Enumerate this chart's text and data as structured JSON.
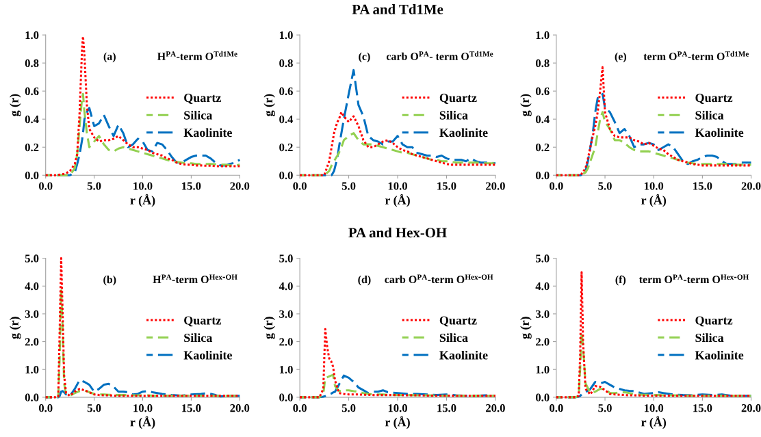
{
  "chart_data": [
    {
      "type": "line",
      "xlabel": "r (Å)",
      "ylabel": "g (r)",
      "annotations": [
        "(a)",
        "H$^{PA}$-term O$^{Td1Me}$"
      ],
      "x": [
        0,
        1,
        2,
        2.5,
        3,
        3.25,
        3.5,
        3.75,
        3.85,
        4,
        4.25,
        4.5,
        5,
        5.5,
        6,
        6.5,
        7,
        7.5,
        8,
        8.5,
        9,
        9.5,
        10,
        10.5,
        11,
        11.5,
        12,
        12.5,
        13,
        13.5,
        14,
        14.5,
        15,
        15.5,
        16,
        16.5,
        17,
        17.5,
        18,
        18.5,
        19,
        19.5,
        20
      ],
      "series": [
        {
          "name": "Quartz",
          "color": "#ff0000",
          "line_style": "dotted",
          "values": [
            0,
            0,
            0.01,
            0.03,
            0.08,
            0.15,
            0.45,
            0.9,
            0.99,
            0.85,
            0.5,
            0.33,
            0.27,
            0.24,
            0.25,
            0.25,
            0.26,
            0.28,
            0.25,
            0.22,
            0.2,
            0.2,
            0.19,
            0.18,
            0.16,
            0.15,
            0.14,
            0.12,
            0.11,
            0.09,
            0.08,
            0.075,
            0.075,
            0.07,
            0.07,
            0.068,
            0.068,
            0.065,
            0.065,
            0.065,
            0.065,
            0.065,
            0.065
          ]
        },
        {
          "name": "Silica",
          "color": "#92d050",
          "line_style": "dashed",
          "values": [
            0,
            0,
            0,
            0,
            0.05,
            0.15,
            0.35,
            0.55,
            0.58,
            0.45,
            0.3,
            0.2,
            0.24,
            0.28,
            0.22,
            0.18,
            0.17,
            0.19,
            0.2,
            0.19,
            0.18,
            0.17,
            0.16,
            0.15,
            0.14,
            0.13,
            0.12,
            0.11,
            0.1,
            0.095,
            0.09,
            0.085,
            0.085,
            0.08,
            0.08,
            0.08,
            0.08,
            0.078,
            0.075,
            0.075,
            0.07,
            0.07,
            0.075
          ]
        },
        {
          "name": "Kaolinite",
          "color": "#0070c0",
          "line_style": "dashed",
          "values": [
            0,
            0,
            0,
            0,
            0.02,
            0.08,
            0.15,
            0.25,
            0.3,
            0.4,
            0.45,
            0.48,
            0.35,
            0.37,
            0.43,
            0.35,
            0.28,
            0.36,
            0.3,
            0.2,
            0.22,
            0.26,
            0.24,
            0.18,
            0.17,
            0.23,
            0.22,
            0.18,
            0.13,
            0.09,
            0.09,
            0.11,
            0.13,
            0.14,
            0.14,
            0.14,
            0.12,
            0.09,
            0.07,
            0.07,
            0.08,
            0.09,
            0.11
          ]
        }
      ],
      "xlim": [
        0,
        20
      ],
      "xticks": [
        {
          "value": 0,
          "label": "0.0"
        },
        {
          "value": 5,
          "label": "5.0"
        },
        {
          "value": 10,
          "label": "10.0"
        },
        {
          "value": 15,
          "label": "15.0"
        },
        {
          "value": 20,
          "label": "20.0"
        }
      ],
      "ylim": [
        0,
        1
      ],
      "yticks": [
        {
          "value": 0,
          "label": "0.0"
        },
        {
          "value": 0.2,
          "label": "0.2"
        },
        {
          "value": 0.4,
          "label": "0.4"
        },
        {
          "value": 0.6,
          "label": "0.6"
        },
        {
          "value": 0.8,
          "label": "0.8"
        },
        {
          "value": 1,
          "label": "1.0"
        }
      ],
      "legend": "right",
      "grid": false
    },
    {
      "type": "line",
      "title": "PA and Td1Me",
      "xlabel": "r (Å)",
      "ylabel": "g (r)",
      "annotations": [
        "(c)",
        "carb O$^{PA}$- term O$^{Td1Me}$"
      ],
      "x": [
        0,
        1,
        2,
        2.5,
        3,
        3.25,
        3.5,
        3.75,
        3.85,
        4,
        4.25,
        4.5,
        5,
        5.5,
        6,
        6.5,
        7,
        7.5,
        8,
        8.5,
        9,
        9.5,
        10,
        10.5,
        11,
        11.5,
        12,
        12.5,
        13,
        13.5,
        14,
        14.5,
        15,
        15.5,
        16,
        16.5,
        17,
        17.5,
        18,
        18.5,
        19,
        19.5,
        20
      ],
      "series": [
        {
          "name": "Quartz",
          "color": "#ff0000",
          "line_style": "dotted",
          "values": [
            0,
            0,
            0,
            0,
            0.1,
            0.2,
            0.3,
            0.36,
            0.38,
            0.4,
            0.45,
            0.42,
            0.38,
            0.42,
            0.35,
            0.25,
            0.2,
            0.2,
            0.22,
            0.24,
            0.25,
            0.23,
            0.2,
            0.18,
            0.17,
            0.15,
            0.14,
            0.13,
            0.12,
            0.11,
            0.1,
            0.09,
            0.08,
            0.075,
            0.075,
            0.075,
            0.075,
            0.075,
            0.075,
            0.075,
            0.075,
            0.075,
            0.075
          ]
        },
        {
          "name": "Silica",
          "color": "#92d050",
          "line_style": "dashed",
          "values": [
            0,
            0,
            0,
            0,
            0.03,
            0.07,
            0.1,
            0.13,
            0.14,
            0.16,
            0.2,
            0.25,
            0.28,
            0.3,
            0.25,
            0.22,
            0.22,
            0.22,
            0.21,
            0.2,
            0.19,
            0.18,
            0.17,
            0.16,
            0.16,
            0.15,
            0.14,
            0.13,
            0.12,
            0.11,
            0.11,
            0.1,
            0.1,
            0.095,
            0.09,
            0.09,
            0.09,
            0.09,
            0.09,
            0.09,
            0.085,
            0.085,
            0.085
          ]
        },
        {
          "name": "Kaolinite",
          "color": "#0070c0",
          "line_style": "dashed",
          "values": [
            0,
            0,
            0,
            0,
            0,
            0,
            0.03,
            0.1,
            0.13,
            0.2,
            0.3,
            0.4,
            0.58,
            0.75,
            0.5,
            0.42,
            0.28,
            0.25,
            0.24,
            0.22,
            0.24,
            0.24,
            0.28,
            0.22,
            0.2,
            0.2,
            0.16,
            0.15,
            0.14,
            0.14,
            0.13,
            0.14,
            0.12,
            0.11,
            0.11,
            0.11,
            0.1,
            0.12,
            0.1,
            0.09,
            0.09,
            0.09,
            0.085
          ]
        }
      ],
      "xlim": [
        0,
        20
      ],
      "xticks": [
        {
          "value": 0,
          "label": "0.0"
        },
        {
          "value": 5,
          "label": "5.0"
        },
        {
          "value": 10,
          "label": "10.0"
        },
        {
          "value": 15,
          "label": "15.0"
        },
        {
          "value": 20,
          "label": "20.0"
        }
      ],
      "ylim": [
        0,
        1
      ],
      "yticks": [
        {
          "value": 0,
          "label": "0.0"
        },
        {
          "value": 0.2,
          "label": "0.2"
        },
        {
          "value": 0.4,
          "label": "0.4"
        },
        {
          "value": 0.6,
          "label": "0.6"
        },
        {
          "value": 0.8,
          "label": "0.8"
        },
        {
          "value": 1,
          "label": "1.0"
        }
      ],
      "legend": "right",
      "grid": false
    },
    {
      "type": "line",
      "xlabel": "r (Å)",
      "ylabel": "g (r)",
      "annotations": [
        "(e)",
        "term O$^{PA}$-term O$^{Td1Me}$"
      ],
      "x": [
        0,
        1,
        2,
        2.5,
        3,
        3.25,
        3.5,
        3.75,
        4,
        4.25,
        4.5,
        4.75,
        5,
        5.5,
        6,
        6.5,
        7,
        7.5,
        8,
        8.5,
        9,
        9.5,
        10,
        10.5,
        11,
        11.5,
        12,
        12.5,
        13,
        13.5,
        14,
        14.5,
        15,
        15.5,
        16,
        16.5,
        17,
        17.5,
        18,
        18.5,
        19,
        19.5,
        20
      ],
      "series": [
        {
          "name": "Quartz",
          "color": "#ff0000",
          "line_style": "dotted",
          "values": [
            0,
            0,
            0,
            0,
            0.05,
            0.12,
            0.2,
            0.28,
            0.35,
            0.45,
            0.6,
            0.77,
            0.45,
            0.33,
            0.28,
            0.27,
            0.27,
            0.27,
            0.25,
            0.24,
            0.22,
            0.23,
            0.21,
            0.19,
            0.18,
            0.15,
            0.13,
            0.11,
            0.1,
            0.09,
            0.08,
            0.075,
            0.07,
            0.07,
            0.07,
            0.07,
            0.07,
            0.07,
            0.07,
            0.07,
            0.07,
            0.07,
            0.07
          ]
        },
        {
          "name": "Silica",
          "color": "#92d050",
          "line_style": "dashed",
          "values": [
            0,
            0,
            0,
            0,
            0.02,
            0.05,
            0.1,
            0.15,
            0.2,
            0.3,
            0.4,
            0.45,
            0.38,
            0.33,
            0.25,
            0.25,
            0.23,
            0.2,
            0.18,
            0.17,
            0.17,
            0.17,
            0.16,
            0.15,
            0.14,
            0.13,
            0.12,
            0.11,
            0.1,
            0.09,
            0.085,
            0.08,
            0.08,
            0.08,
            0.08,
            0.08,
            0.08,
            0.08,
            0.08,
            0.075,
            0.075,
            0.075,
            0.075
          ]
        },
        {
          "name": "Kaolinite",
          "color": "#0070c0",
          "line_style": "dashed",
          "values": [
            0,
            0,
            0,
            0,
            0.03,
            0.1,
            0.2,
            0.3,
            0.45,
            0.55,
            0.55,
            0.58,
            0.48,
            0.45,
            0.38,
            0.3,
            0.33,
            0.28,
            0.2,
            0.22,
            0.22,
            0.23,
            0.22,
            0.18,
            0.2,
            0.22,
            0.2,
            0.15,
            0.1,
            0.08,
            0.1,
            0.11,
            0.13,
            0.14,
            0.14,
            0.13,
            0.1,
            0.08,
            0.08,
            0.08,
            0.09,
            0.09,
            0.09
          ]
        }
      ],
      "xlim": [
        0,
        20
      ],
      "xticks": [
        {
          "value": 0,
          "label": "0.0"
        },
        {
          "value": 5,
          "label": "5.0"
        },
        {
          "value": 10,
          "label": "10.0"
        },
        {
          "value": 15,
          "label": "15.0"
        },
        {
          "value": 20,
          "label": "20.0"
        }
      ],
      "ylim": [
        0,
        1
      ],
      "yticks": [
        {
          "value": 0,
          "label": "0.0"
        },
        {
          "value": 0.2,
          "label": "0.2"
        },
        {
          "value": 0.4,
          "label": "0.4"
        },
        {
          "value": 0.6,
          "label": "0.6"
        },
        {
          "value": 0.8,
          "label": "0.8"
        },
        {
          "value": 1,
          "label": "1.0"
        }
      ],
      "legend": "right",
      "grid": false
    },
    {
      "type": "line",
      "xlabel": "r (Å)",
      "ylabel": "g (r)",
      "annotations": [
        "(b)",
        "H$^{PA}$-term O$^{Hex-OH}$"
      ],
      "x": [
        0,
        1,
        1.3,
        1.45,
        1.6,
        1.75,
        1.9,
        2.1,
        2.5,
        3,
        3.5,
        4,
        4.5,
        5,
        5.5,
        6,
        6.5,
        7,
        7.5,
        8,
        8.5,
        9,
        9.5,
        10,
        10.5,
        11,
        11.5,
        12,
        13,
        14,
        15,
        16,
        16.7,
        17.5,
        18,
        19,
        20
      ],
      "series": [
        {
          "name": "Quartz",
          "color": "#ff0000",
          "line_style": "dotted",
          "values": [
            0,
            0,
            0.02,
            2.5,
            5.0,
            3.0,
            0.8,
            0.15,
            0.05,
            0.2,
            0.3,
            0.25,
            0.18,
            0.1,
            0.08,
            0.07,
            0.07,
            0.06,
            0.05,
            0.05,
            0.05,
            0.05,
            0.05,
            0.05,
            0.05,
            0.05,
            0.05,
            0.05,
            0.05,
            0.05,
            0.05,
            0.05,
            0.05,
            0.05,
            0.05,
            0.05,
            0.05
          ]
        },
        {
          "name": "Silica",
          "color": "#92d050",
          "line_style": "dashed",
          "values": [
            0,
            0,
            0.02,
            1.5,
            3.9,
            2.5,
            0.5,
            0.12,
            0.05,
            0.15,
            0.22,
            0.25,
            0.18,
            0.12,
            0.1,
            0.1,
            0.09,
            0.08,
            0.08,
            0.08,
            0.08,
            0.07,
            0.07,
            0.07,
            0.07,
            0.06,
            0.06,
            0.06,
            0.06,
            0.06,
            0.06,
            0.06,
            0.06,
            0.05,
            0.05,
            0.05,
            0.05
          ]
        },
        {
          "name": "Kaolinite",
          "color": "#0070c0",
          "line_style": "dashed",
          "values": [
            0,
            0,
            0,
            0.05,
            0.2,
            0.22,
            0.18,
            0.1,
            0.05,
            0.3,
            0.62,
            0.55,
            0.45,
            0.2,
            0.3,
            0.45,
            0.48,
            0.38,
            0.2,
            0.2,
            0.18,
            0.1,
            0.12,
            0.2,
            0.22,
            0.18,
            0.15,
            0.12,
            0.08,
            0.06,
            0.1,
            0.12,
            0.15,
            0.08,
            0.03,
            0.05,
            0.05
          ]
        }
      ],
      "xlim": [
        0,
        20
      ],
      "xticks": [
        {
          "value": 0,
          "label": "0.0"
        },
        {
          "value": 5,
          "label": "5.0"
        },
        {
          "value": 10,
          "label": "10.0"
        },
        {
          "value": 15,
          "label": "15.0"
        },
        {
          "value": 20,
          "label": "20.0"
        }
      ],
      "ylim": [
        0,
        5
      ],
      "yticks": [
        {
          "value": 0,
          "label": "0.0"
        },
        {
          "value": 1,
          "label": "1.0"
        },
        {
          "value": 2,
          "label": "2.0"
        },
        {
          "value": 3,
          "label": "3.0"
        },
        {
          "value": 4,
          "label": "4.0"
        },
        {
          "value": 5,
          "label": "5.0"
        }
      ],
      "legend": "right",
      "grid": false
    },
    {
      "type": "line",
      "title": "PA and Hex-OH",
      "xlabel": "r (Å)",
      "ylabel": "g (r)",
      "annotations": [
        "(d)",
        "carb O$^{PA}$-term O$^{Hex-OH}$"
      ],
      "x": [
        0,
        1,
        2,
        2.4,
        2.6,
        2.8,
        3,
        3.2,
        3.4,
        3.6,
        4,
        4.5,
        5,
        5.5,
        6,
        6.5,
        7,
        7.5,
        8,
        8.5,
        9,
        10,
        11,
        12,
        13,
        14,
        15,
        16,
        17,
        18,
        19,
        20
      ],
      "series": [
        {
          "name": "Quartz",
          "color": "#ff0000",
          "line_style": "dotted",
          "values": [
            0,
            0,
            0,
            0.3,
            2.45,
            1.8,
            1.4,
            1.3,
            1.1,
            0.6,
            0.15,
            0.12,
            0.1,
            0.1,
            0.1,
            0.09,
            0.09,
            0.08,
            0.08,
            0.08,
            0.08,
            0.08,
            0.07,
            0.07,
            0.06,
            0.06,
            0.06,
            0.05,
            0.05,
            0.05,
            0.05,
            0.05
          ]
        },
        {
          "name": "Silica",
          "color": "#92d050",
          "line_style": "dashed",
          "values": [
            0,
            0,
            0,
            0.1,
            0.7,
            0.72,
            0.75,
            0.78,
            0.8,
            0.4,
            0.22,
            0.25,
            0.25,
            0.22,
            0.2,
            0.15,
            0.12,
            0.1,
            0.1,
            0.1,
            0.09,
            0.08,
            0.08,
            0.07,
            0.07,
            0.06,
            0.06,
            0.06,
            0.05,
            0.05,
            0.05,
            0.05
          ]
        },
        {
          "name": "Kaolinite",
          "color": "#0070c0",
          "line_style": "dashed",
          "values": [
            0,
            0,
            0,
            0.02,
            0.04,
            0.07,
            0.1,
            0.13,
            0.17,
            0.2,
            0.45,
            0.78,
            0.7,
            0.55,
            0.35,
            0.25,
            0.15,
            0.2,
            0.2,
            0.25,
            0.18,
            0.15,
            0.12,
            0.12,
            0.1,
            0.08,
            0.1,
            0.07,
            0.05,
            0.05,
            0.07,
            0.05
          ]
        }
      ],
      "xlim": [
        0,
        20
      ],
      "xticks": [
        {
          "value": 0,
          "label": "0.0"
        },
        {
          "value": 5,
          "label": "5.0"
        },
        {
          "value": 10,
          "label": "10.0"
        },
        {
          "value": 15,
          "label": "15.0"
        },
        {
          "value": 20,
          "label": "20.0"
        }
      ],
      "ylim": [
        0,
        5
      ],
      "yticks": [
        {
          "value": 0,
          "label": "0.0"
        },
        {
          "value": 1,
          "label": "1.0"
        },
        {
          "value": 2,
          "label": "2.0"
        },
        {
          "value": 3,
          "label": "3.0"
        },
        {
          "value": 4,
          "label": "4.0"
        },
        {
          "value": 5,
          "label": "5.0"
        }
      ],
      "legend": "right",
      "grid": false
    },
    {
      "type": "line",
      "xlabel": "r (Å)",
      "ylabel": "g (r)",
      "annotations": [
        "(f)",
        "term O$^{PA}$-term O$^{Hex-OH}$"
      ],
      "x": [
        0,
        1,
        2,
        2.3,
        2.45,
        2.6,
        2.75,
        3,
        3.5,
        4,
        4.5,
        5,
        5.5,
        6,
        6.5,
        7,
        7.5,
        8,
        9,
        10,
        10.5,
        11,
        12,
        13,
        14,
        15,
        16,
        17,
        18,
        19,
        20
      ],
      "series": [
        {
          "name": "Quartz",
          "color": "#ff0000",
          "line_style": "dotted",
          "values": [
            0,
            0,
            0,
            0.05,
            1.5,
            4.5,
            2.0,
            0.3,
            0.1,
            0.4,
            0.38,
            0.25,
            0.12,
            0.1,
            0.09,
            0.08,
            0.07,
            0.07,
            0.06,
            0.06,
            0.06,
            0.06,
            0.06,
            0.05,
            0.05,
            0.05,
            0.05,
            0.05,
            0.05,
            0.05,
            0.05
          ]
        },
        {
          "name": "Silica",
          "color": "#92d050",
          "line_style": "dashed",
          "values": [
            0,
            0,
            0,
            0.05,
            1.0,
            2.35,
            1.8,
            0.5,
            0.15,
            0.2,
            0.3,
            0.3,
            0.15,
            0.15,
            0.17,
            0.18,
            0.15,
            0.1,
            0.09,
            0.08,
            0.08,
            0.07,
            0.07,
            0.06,
            0.06,
            0.06,
            0.06,
            0.06,
            0.05,
            0.05,
            0.05
          ]
        },
        {
          "name": "Kaolinite",
          "color": "#0070c0",
          "line_style": "dashed",
          "values": [
            0,
            0,
            0,
            0.02,
            0.05,
            0.1,
            0.15,
            0.18,
            0.3,
            0.55,
            0.5,
            0.55,
            0.45,
            0.35,
            0.3,
            0.25,
            0.23,
            0.22,
            0.12,
            0.15,
            0.18,
            0.15,
            0.1,
            0.08,
            0.07,
            0.1,
            0.08,
            0.1,
            0.05,
            0.05,
            0.05
          ]
        }
      ],
      "xlim": [
        0,
        20
      ],
      "xticks": [
        {
          "value": 0,
          "label": "0.0"
        },
        {
          "value": 5,
          "label": "5.0"
        },
        {
          "value": 10,
          "label": "10.0"
        },
        {
          "value": 15,
          "label": "15.0"
        },
        {
          "value": 20,
          "label": "20.0"
        }
      ],
      "ylim": [
        0,
        5
      ],
      "yticks": [
        {
          "value": 0,
          "label": "0.0"
        },
        {
          "value": 1,
          "label": "1.0"
        },
        {
          "value": 2,
          "label": "2.0"
        },
        {
          "value": 3,
          "label": "3.0"
        },
        {
          "value": 4,
          "label": "4.0"
        },
        {
          "value": 5,
          "label": "5.0"
        }
      ],
      "legend": "right",
      "grid": false
    }
  ]
}
